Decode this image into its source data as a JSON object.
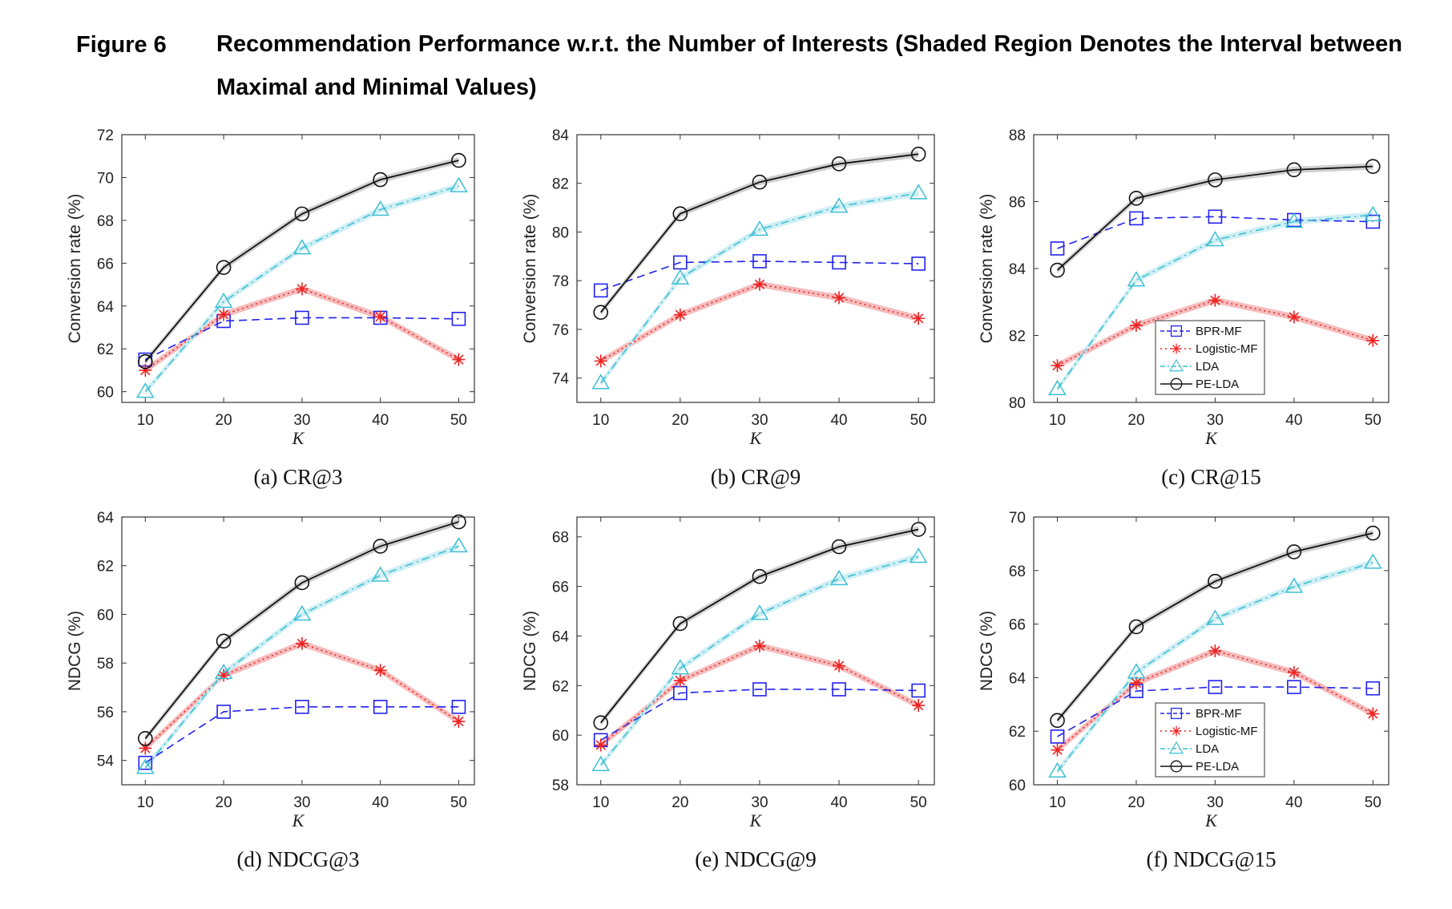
{
  "figure": {
    "label": "Figure 6",
    "title": "Recommendation Performance w.r.t. the Number of Interests (Shaded Region Denotes the Interval between Maximal and Minimal Values)"
  },
  "series_styles": {
    "BPR-MF": {
      "color": "#2222ee",
      "dash": "10,6",
      "marker": "square"
    },
    "Logistic-MF": {
      "color": "#ee2222",
      "dash": "2,4",
      "marker": "asterisk",
      "band": "#f4b0b0"
    },
    "LDA": {
      "color": "#3cbfd4",
      "dash": "10,5,2,5",
      "marker": "triangle",
      "band": "#c8ecf2"
    },
    "PE-LDA": {
      "color": "#111111",
      "dash": "",
      "marker": "circle",
      "band": "#c8c8c8"
    }
  },
  "chart_data": [
    {
      "type": "line",
      "caption": "(a) CR@3",
      "xlabel": "K",
      "ylabel": "Conversion rate (%)",
      "x": [
        10,
        20,
        30,
        40,
        50
      ],
      "xlim": [
        7,
        52
      ],
      "ylim": [
        59.5,
        72
      ],
      "yticks": [
        60,
        62,
        64,
        66,
        68,
        70,
        72
      ],
      "legend": false,
      "series": [
        {
          "name": "BPR-MF",
          "values": [
            61.5,
            63.3,
            63.45,
            63.45,
            63.4
          ]
        },
        {
          "name": "Logistic-MF",
          "values": [
            61.0,
            63.6,
            64.8,
            63.5,
            61.5
          ]
        },
        {
          "name": "LDA",
          "values": [
            60.0,
            64.2,
            66.7,
            68.5,
            69.6
          ]
        },
        {
          "name": "PE-LDA",
          "values": [
            61.4,
            65.8,
            68.3,
            69.9,
            70.8
          ]
        }
      ]
    },
    {
      "type": "line",
      "caption": "(b) CR@9",
      "xlabel": "K",
      "ylabel": "Conversion rate (%)",
      "x": [
        10,
        20,
        30,
        40,
        50
      ],
      "xlim": [
        7,
        52
      ],
      "ylim": [
        73,
        84
      ],
      "yticks": [
        74,
        76,
        78,
        80,
        82,
        84
      ],
      "legend": false,
      "series": [
        {
          "name": "BPR-MF",
          "values": [
            77.6,
            78.75,
            78.8,
            78.75,
            78.7
          ]
        },
        {
          "name": "Logistic-MF",
          "values": [
            74.7,
            76.6,
            77.85,
            77.3,
            76.45
          ]
        },
        {
          "name": "LDA",
          "values": [
            73.8,
            78.1,
            80.1,
            81.05,
            81.6
          ]
        },
        {
          "name": "PE-LDA",
          "values": [
            76.7,
            80.75,
            82.05,
            82.8,
            83.2
          ]
        }
      ]
    },
    {
      "type": "line",
      "caption": "(c) CR@15",
      "xlabel": "K",
      "ylabel": "Conversion rate (%)",
      "x": [
        10,
        20,
        30,
        40,
        50
      ],
      "xlim": [
        7,
        52
      ],
      "ylim": [
        80,
        88
      ],
      "yticks": [
        80,
        82,
        84,
        86,
        88
      ],
      "legend": true,
      "legend_position": "lower-middle",
      "series": [
        {
          "name": "BPR-MF",
          "values": [
            84.6,
            85.5,
            85.55,
            85.45,
            85.4
          ]
        },
        {
          "name": "Logistic-MF",
          "values": [
            81.1,
            82.3,
            83.05,
            82.55,
            81.85
          ]
        },
        {
          "name": "LDA",
          "values": [
            80.4,
            83.65,
            84.85,
            85.4,
            85.6
          ]
        },
        {
          "name": "PE-LDA",
          "values": [
            83.95,
            86.1,
            86.65,
            86.95,
            87.05
          ]
        }
      ]
    },
    {
      "type": "line",
      "caption": "(d) NDCG@3",
      "xlabel": "K",
      "ylabel": "NDCG (%)",
      "x": [
        10,
        20,
        30,
        40,
        50
      ],
      "xlim": [
        7,
        52
      ],
      "ylim": [
        53,
        64
      ],
      "yticks": [
        54,
        56,
        58,
        60,
        62,
        64
      ],
      "legend": false,
      "series": [
        {
          "name": "BPR-MF",
          "values": [
            53.9,
            56.0,
            56.2,
            56.2,
            56.2
          ]
        },
        {
          "name": "Logistic-MF",
          "values": [
            54.5,
            57.5,
            58.8,
            57.7,
            55.6
          ]
        },
        {
          "name": "LDA",
          "values": [
            53.7,
            57.6,
            60.0,
            61.6,
            62.8
          ]
        },
        {
          "name": "PE-LDA",
          "values": [
            54.9,
            58.9,
            61.3,
            62.8,
            63.8
          ]
        }
      ]
    },
    {
      "type": "line",
      "caption": "(e) NDCG@9",
      "xlabel": "K",
      "ylabel": "NDCG (%)",
      "x": [
        10,
        20,
        30,
        40,
        50
      ],
      "xlim": [
        7,
        52
      ],
      "ylim": [
        58,
        68.8
      ],
      "yticks": [
        58,
        60,
        62,
        64,
        66,
        68
      ],
      "legend": false,
      "series": [
        {
          "name": "BPR-MF",
          "values": [
            59.8,
            61.7,
            61.85,
            61.85,
            61.8
          ]
        },
        {
          "name": "Logistic-MF",
          "values": [
            59.6,
            62.2,
            63.6,
            62.8,
            61.2
          ]
        },
        {
          "name": "LDA",
          "values": [
            58.8,
            62.7,
            64.9,
            66.3,
            67.2
          ]
        },
        {
          "name": "PE-LDA",
          "values": [
            60.5,
            64.5,
            66.4,
            67.6,
            68.3
          ]
        }
      ]
    },
    {
      "type": "line",
      "caption": "(f) NDCG@15",
      "xlabel": "K",
      "ylabel": "NDCG (%)",
      "x": [
        10,
        20,
        30,
        40,
        50
      ],
      "xlim": [
        7,
        52
      ],
      "ylim": [
        60,
        70
      ],
      "yticks": [
        60,
        62,
        64,
        66,
        68,
        70
      ],
      "legend": true,
      "legend_position": "lower-middle",
      "series": [
        {
          "name": "BPR-MF",
          "values": [
            61.8,
            63.5,
            63.65,
            63.65,
            63.6
          ]
        },
        {
          "name": "Logistic-MF",
          "values": [
            61.3,
            63.8,
            65.0,
            64.2,
            62.65
          ]
        },
        {
          "name": "LDA",
          "values": [
            60.5,
            64.2,
            66.2,
            67.4,
            68.3
          ]
        },
        {
          "name": "PE-LDA",
          "values": [
            62.4,
            65.9,
            67.6,
            68.7,
            69.4
          ]
        }
      ]
    }
  ]
}
